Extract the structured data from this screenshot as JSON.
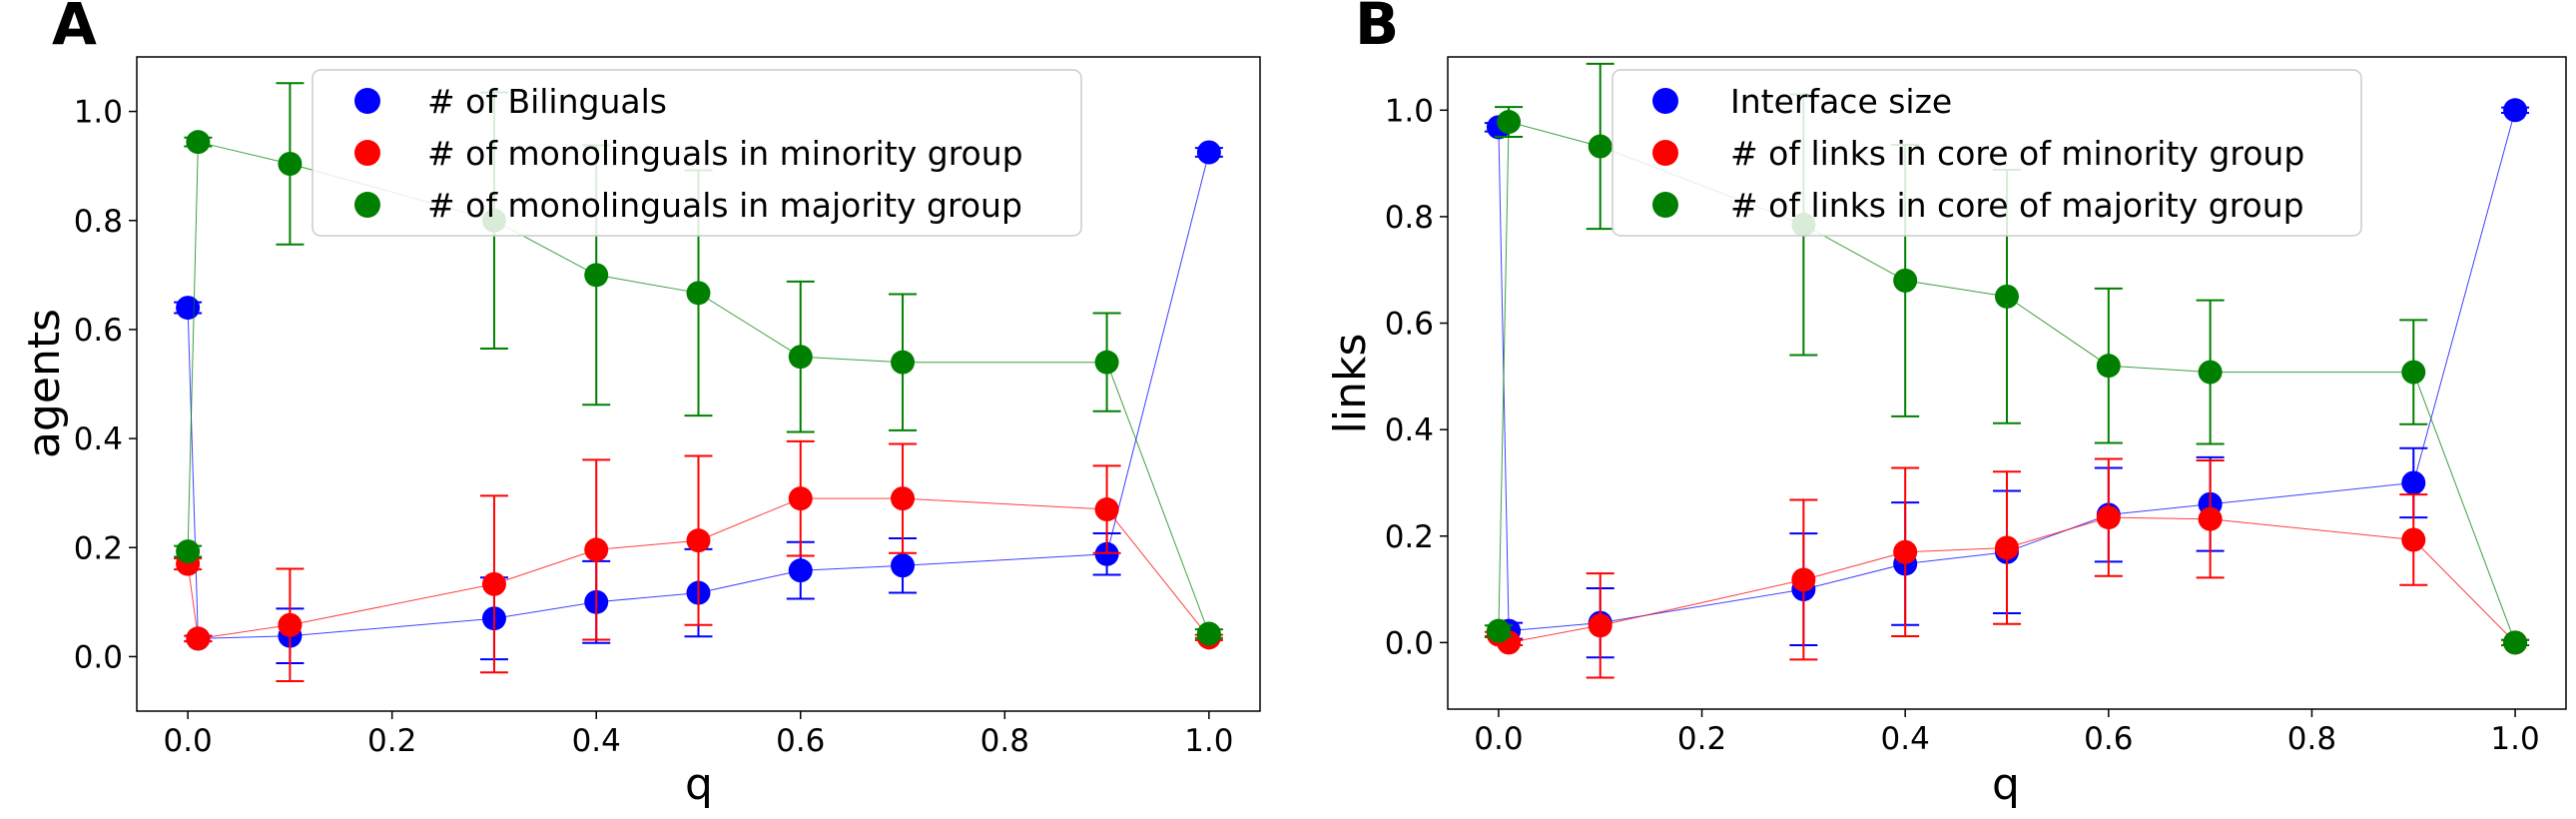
{
  "chart_data": [
    {
      "panel": "A",
      "type": "line",
      "xlabel": "q",
      "ylabel": "agents",
      "xlim": [
        -0.05,
        1.05
      ],
      "ylim": [
        -0.1,
        1.1
      ],
      "xticks": [
        "0.0",
        "0.2",
        "0.4",
        "0.6",
        "0.8",
        "1.0"
      ],
      "xtick_values": [
        0.0,
        0.2,
        0.4,
        0.6,
        0.8,
        1.0
      ],
      "yticks": [
        "0.0",
        "0.2",
        "0.4",
        "0.6",
        "0.8",
        "1.0"
      ],
      "ytick_values": [
        0.0,
        0.2,
        0.4,
        0.6,
        0.8,
        1.0
      ],
      "grid": false,
      "legend_position": "top",
      "series": [
        {
          "name": "# of Bilinguals",
          "color": "#0000ff",
          "x": [
            0.0,
            0.01,
            0.1,
            0.3,
            0.4,
            0.5,
            0.6,
            0.7,
            0.9,
            1.0
          ],
          "y": [
            0.64,
            0.033,
            0.038,
            0.07,
            0.1,
            0.117,
            0.158,
            0.167,
            0.188,
            0.925
          ],
          "err": [
            0.01,
            0.005,
            0.05,
            0.075,
            0.075,
            0.08,
            0.052,
            0.05,
            0.038,
            0.008
          ]
        },
        {
          "name": "# of monolinguals in minority group",
          "color": "#ff0000",
          "x": [
            0.0,
            0.01,
            0.1,
            0.3,
            0.4,
            0.5,
            0.6,
            0.7,
            0.9,
            1.0
          ],
          "y": [
            0.17,
            0.033,
            0.058,
            0.133,
            0.196,
            0.213,
            0.29,
            0.29,
            0.27,
            0.035
          ],
          "err": [
            0.01,
            0.005,
            0.103,
            0.162,
            0.165,
            0.155,
            0.105,
            0.1,
            0.08,
            0.005
          ]
        },
        {
          "name": "# of monolinguals in majority group",
          "color": "#008000",
          "x": [
            0.0,
            0.01,
            0.1,
            0.3,
            0.4,
            0.5,
            0.6,
            0.7,
            0.9,
            1.0
          ],
          "y": [
            0.193,
            0.944,
            0.904,
            0.8,
            0.7,
            0.667,
            0.55,
            0.54,
            0.54,
            0.042
          ],
          "err": [
            0.01,
            0.008,
            0.148,
            0.235,
            0.238,
            0.225,
            0.138,
            0.125,
            0.09,
            0.008
          ]
        }
      ]
    },
    {
      "panel": "B",
      "type": "line",
      "xlabel": "q",
      "ylabel": "links",
      "xlim": [
        -0.05,
        1.05
      ],
      "ylim": [
        -0.125,
        1.1
      ],
      "xticks": [
        "0.0",
        "0.2",
        "0.4",
        "0.6",
        "0.8",
        "1.0"
      ],
      "xtick_values": [
        0.0,
        0.2,
        0.4,
        0.6,
        0.8,
        1.0
      ],
      "yticks": [
        "0.0",
        "0.2",
        "0.4",
        "0.6",
        "0.8",
        "1.0"
      ],
      "ytick_values": [
        0.0,
        0.2,
        0.4,
        0.6,
        0.8,
        1.0
      ],
      "grid": false,
      "legend_position": "top",
      "series": [
        {
          "name": "Interface size",
          "color": "#0000ff",
          "x": [
            0.0,
            0.01,
            0.1,
            0.3,
            0.4,
            0.5,
            0.6,
            0.7,
            0.9,
            1.0
          ],
          "y": [
            0.968,
            0.022,
            0.037,
            0.1,
            0.148,
            0.17,
            0.24,
            0.26,
            0.3,
            1.0
          ],
          "err": [
            0.008,
            0.015,
            0.065,
            0.105,
            0.115,
            0.115,
            0.088,
            0.088,
            0.065,
            0.005
          ]
        },
        {
          "name": "# of links in core of minority group",
          "color": "#ff0000",
          "x": [
            0.0,
            0.01,
            0.1,
            0.3,
            0.4,
            0.5,
            0.6,
            0.7,
            0.9,
            1.0
          ],
          "y": [
            0.015,
            0.0,
            0.032,
            0.118,
            0.17,
            0.178,
            0.235,
            0.232,
            0.193,
            0.0
          ],
          "err": [
            0.005,
            0.005,
            0.098,
            0.15,
            0.158,
            0.143,
            0.11,
            0.11,
            0.085,
            0.005
          ]
        },
        {
          "name": "# of links in core of majority group",
          "color": "#008000",
          "x": [
            0.0,
            0.01,
            0.1,
            0.3,
            0.4,
            0.5,
            0.6,
            0.7,
            0.9,
            1.0
          ],
          "y": [
            0.022,
            0.978,
            0.932,
            0.785,
            0.68,
            0.65,
            0.52,
            0.508,
            0.508,
            0.0
          ],
          "err": [
            0.01,
            0.028,
            0.155,
            0.245,
            0.255,
            0.238,
            0.145,
            0.135,
            0.098,
            0.005
          ]
        }
      ]
    }
  ]
}
